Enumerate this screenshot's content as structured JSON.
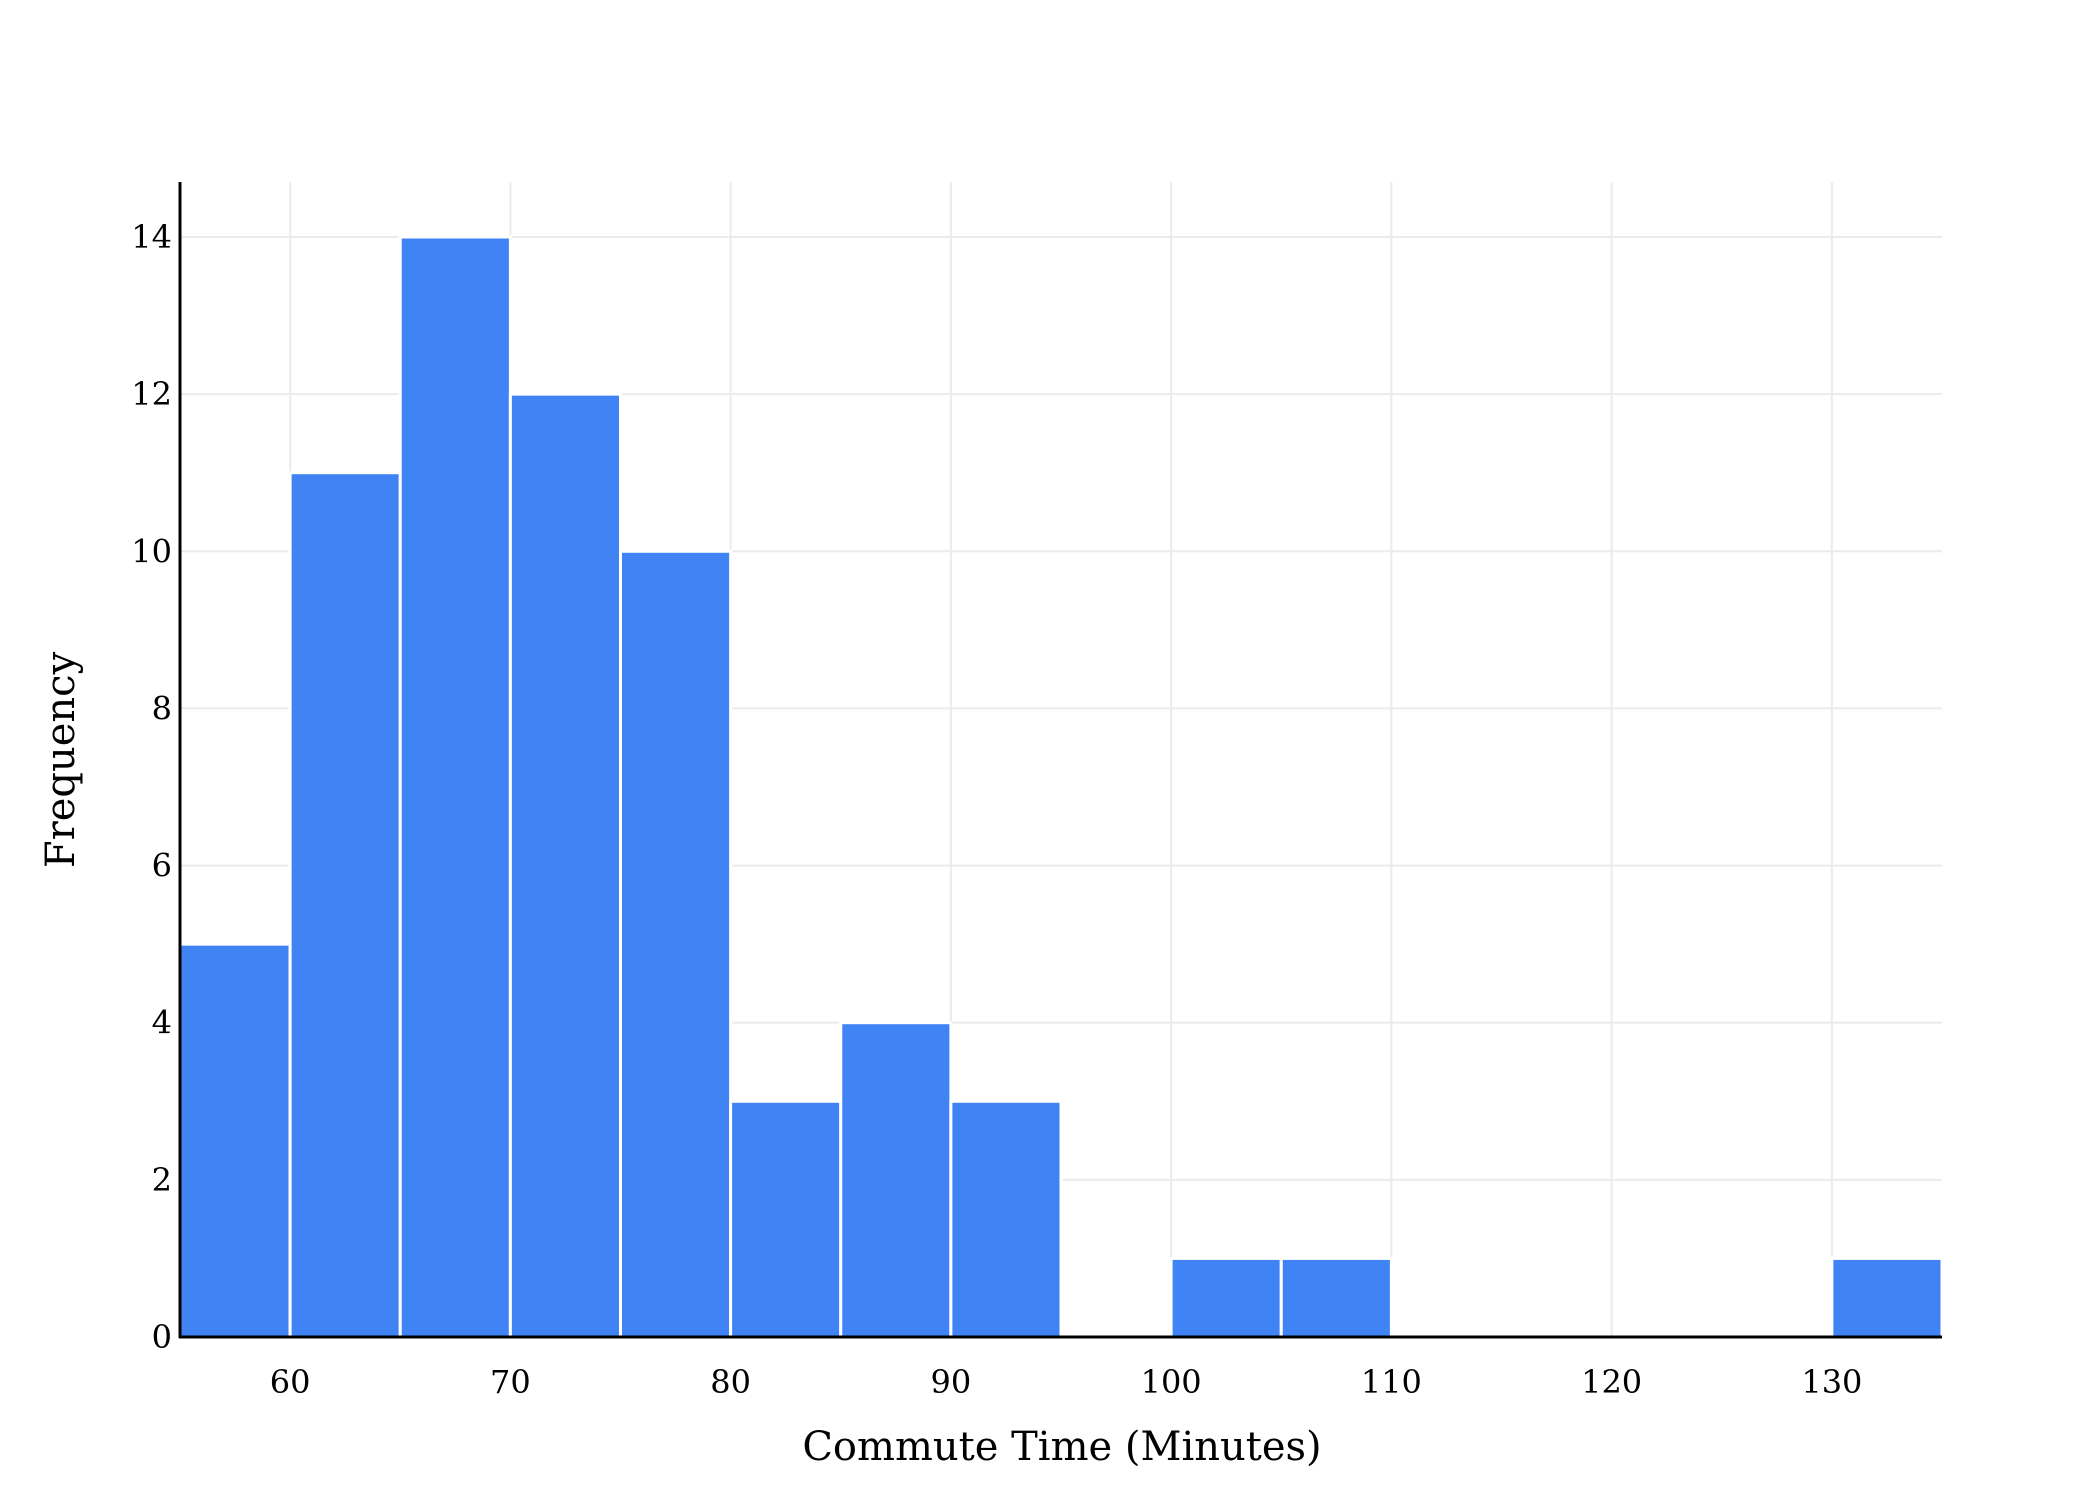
{
  "chart_data": {
    "type": "bar",
    "title": "",
    "xlabel": "Commute Time (Minutes)",
    "ylabel": "Frequency",
    "bin_width": 5,
    "xlim": [
      55,
      135
    ],
    "ylim": [
      0,
      14.7
    ],
    "x_ticks": [
      60,
      70,
      80,
      90,
      100,
      110,
      120,
      130
    ],
    "y_ticks": [
      0,
      2,
      4,
      6,
      8,
      10,
      12,
      14
    ],
    "bins": [
      {
        "start": 55,
        "end": 60,
        "count": 5
      },
      {
        "start": 60,
        "end": 65,
        "count": 11
      },
      {
        "start": 65,
        "end": 70,
        "count": 14
      },
      {
        "start": 70,
        "end": 75,
        "count": 12
      },
      {
        "start": 75,
        "end": 80,
        "count": 10
      },
      {
        "start": 80,
        "end": 85,
        "count": 3
      },
      {
        "start": 85,
        "end": 90,
        "count": 4
      },
      {
        "start": 90,
        "end": 95,
        "count": 3
      },
      {
        "start": 95,
        "end": 100,
        "count": 0
      },
      {
        "start": 100,
        "end": 105,
        "count": 1
      },
      {
        "start": 105,
        "end": 110,
        "count": 1
      },
      {
        "start": 110,
        "end": 115,
        "count": 0
      },
      {
        "start": 115,
        "end": 120,
        "count": 0
      },
      {
        "start": 120,
        "end": 125,
        "count": 0
      },
      {
        "start": 125,
        "end": 130,
        "count": 0
      },
      {
        "start": 130,
        "end": 135,
        "count": 1
      }
    ],
    "grid": true,
    "legend": "none",
    "colors": {
      "bar_fill": "#3F83F5",
      "bar_edge": "#FFFFFF",
      "grid": "#EBEBEB",
      "axis": "#000000"
    }
  }
}
